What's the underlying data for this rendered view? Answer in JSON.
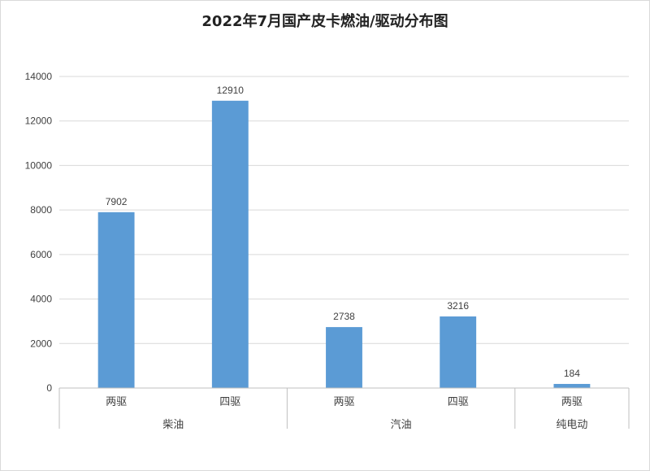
{
  "chart_data": {
    "type": "bar",
    "title": "2022年7月国产皮卡燃油/驱动分布图",
    "xlabel": "",
    "ylabel": "",
    "ylim": [
      0,
      14000
    ],
    "yticks": [
      0,
      2000,
      4000,
      6000,
      8000,
      10000,
      12000,
      14000
    ],
    "grid": true,
    "bar_color": "#5b9bd5",
    "groups": [
      {
        "label": "柴油",
        "categories": [
          "两驱",
          "四驱"
        ],
        "values": [
          7902,
          12910
        ]
      },
      {
        "label": "汽油",
        "categories": [
          "两驱",
          "四驱"
        ],
        "values": [
          2738,
          3216
        ]
      },
      {
        "label": "纯电动",
        "categories": [
          "两驱"
        ],
        "values": [
          184
        ]
      }
    ]
  }
}
